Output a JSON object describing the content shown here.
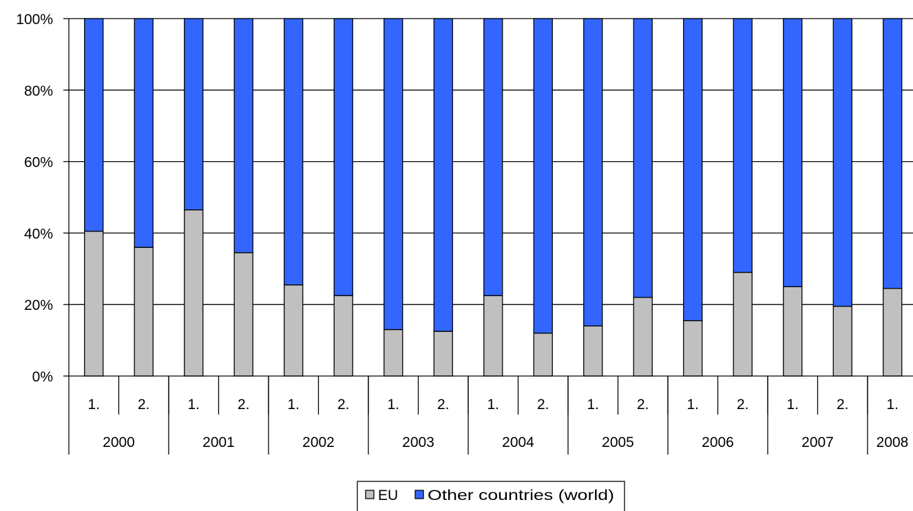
{
  "chart_data": {
    "type": "bar",
    "stacked": true,
    "percent": true,
    "categories": [
      "1.",
      "2.",
      "1.",
      "2.",
      "1.",
      "2.",
      "1.",
      "2.",
      "1.",
      "2.",
      "1.",
      "2.",
      "1.",
      "2.",
      "1.",
      "2.",
      "1."
    ],
    "groups": [
      {
        "label": "2000",
        "count": 2
      },
      {
        "label": "2001",
        "count": 2
      },
      {
        "label": "2002",
        "count": 2
      },
      {
        "label": "2003",
        "count": 2
      },
      {
        "label": "2004",
        "count": 2
      },
      {
        "label": "2005",
        "count": 2
      },
      {
        "label": "2006",
        "count": 2
      },
      {
        "label": "2007",
        "count": 2
      },
      {
        "label": "2008",
        "count": 1
      }
    ],
    "series": [
      {
        "name": "EU",
        "color": "#c0c0c0",
        "values": [
          40.5,
          36,
          46.5,
          34.5,
          25.5,
          22.5,
          13,
          12.5,
          22.5,
          12,
          14,
          22,
          15.5,
          29,
          25,
          19.5,
          24.5
        ]
      },
      {
        "name": "Other countries (world)",
        "color": "#3366ff",
        "values": [
          59.5,
          64,
          53.5,
          65.5,
          74.5,
          77.5,
          87,
          87.5,
          77.5,
          88,
          86,
          78,
          84.5,
          71,
          75,
          80.5,
          75.5
        ]
      }
    ],
    "ylim": [
      0,
      100
    ],
    "yticks": [
      "0%",
      "20%",
      "40%",
      "60%",
      "80%",
      "100%"
    ],
    "grid": true,
    "legend_position": "bottom-center"
  }
}
